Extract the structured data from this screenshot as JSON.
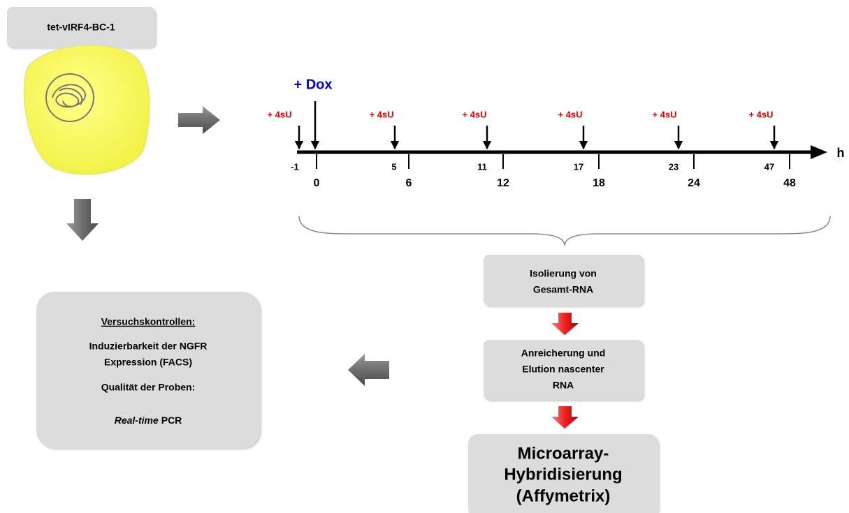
{
  "header": {
    "title": "tet-vIRF4-BC-1"
  },
  "timeline": {
    "treatment": "+ Dox",
    "unit": "h",
    "pulses": [
      {
        "label": "+ 4sU",
        "time": "-1"
      },
      {
        "label": "+ 4sU",
        "time": "5"
      },
      {
        "label": "+ 4sU",
        "time": "11"
      },
      {
        "label": "+ 4sU",
        "time": "17"
      },
      {
        "label": "+ 4sU",
        "time": "23"
      },
      {
        "label": "+ 4sU",
        "time": "47"
      }
    ],
    "harvest_times": [
      "0",
      "6",
      "12",
      "18",
      "24",
      "48"
    ]
  },
  "steps": [
    {
      "lines": [
        "Isolierung von",
        "Gesamt-RNA"
      ]
    },
    {
      "lines": [
        "Anreicherung und",
        "Elution nascenter",
        "RNA"
      ]
    },
    {
      "lines": [
        "Microarray-",
        "Hybridisierung",
        "(Affymetrix)"
      ]
    }
  ],
  "controls": {
    "heading": "Versuchskontrollen:",
    "lines": [
      "Induzierbarkeit der NGFR",
      "Expression (FACS)",
      "Qualität der Proben:"
    ],
    "last_line": {
      "italic": "Real-time",
      "normal": "PCR"
    }
  }
}
